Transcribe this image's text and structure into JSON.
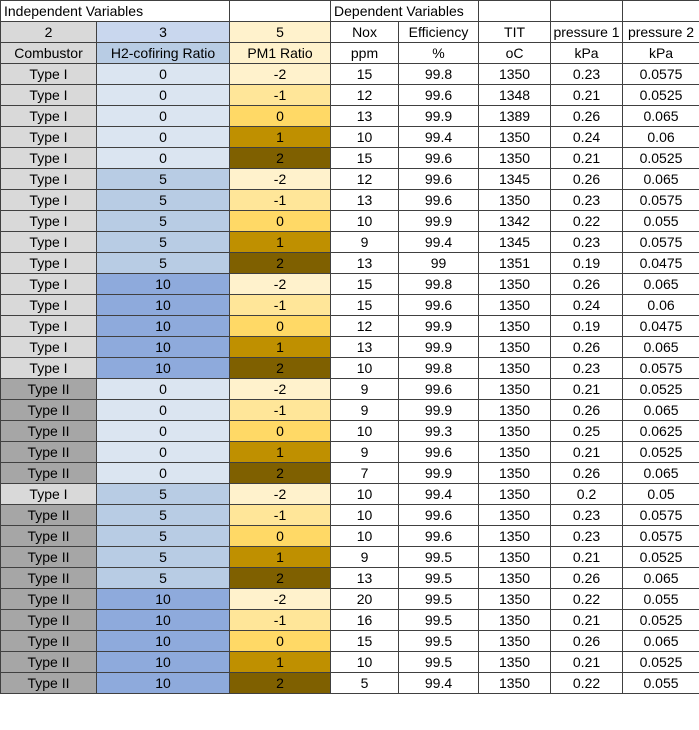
{
  "table": {
    "section_headers": {
      "independent": "Independent Variables",
      "dependent": "Dependent Variables"
    },
    "number_row": [
      "2",
      "3",
      "5",
      "Nox",
      "Efficiency",
      "TIT",
      "pressure 1",
      "pressure 2"
    ],
    "title_row": [
      "Combustor",
      "H2-cofiring Ratio",
      "PM1 Ratio",
      "ppm",
      "%",
      "oC",
      "kPa",
      "kPa"
    ],
    "rows": [
      [
        "Type I",
        "0",
        "-2",
        "15",
        "99.8",
        "1350",
        "0.23",
        "0.0575"
      ],
      [
        "Type I",
        "0",
        "-1",
        "12",
        "99.6",
        "1348",
        "0.21",
        "0.0525"
      ],
      [
        "Type I",
        "0",
        "0",
        "13",
        "99.9",
        "1389",
        "0.26",
        "0.065"
      ],
      [
        "Type I",
        "0",
        "1",
        "10",
        "99.4",
        "1350",
        "0.24",
        "0.06"
      ],
      [
        "Type I",
        "0",
        "2",
        "15",
        "99.6",
        "1350",
        "0.21",
        "0.0525"
      ],
      [
        "Type I",
        "5",
        "-2",
        "12",
        "99.6",
        "1345",
        "0.26",
        "0.065"
      ],
      [
        "Type I",
        "5",
        "-1",
        "13",
        "99.6",
        "1350",
        "0.23",
        "0.0575"
      ],
      [
        "Type I",
        "5",
        "0",
        "10",
        "99.9",
        "1342",
        "0.22",
        "0.055"
      ],
      [
        "Type I",
        "5",
        "1",
        "9",
        "99.4",
        "1345",
        "0.23",
        "0.0575"
      ],
      [
        "Type I",
        "5",
        "2",
        "13",
        "99",
        "1351",
        "0.19",
        "0.0475"
      ],
      [
        "Type I",
        "10",
        "-2",
        "15",
        "99.8",
        "1350",
        "0.26",
        "0.065"
      ],
      [
        "Type I",
        "10",
        "-1",
        "15",
        "99.6",
        "1350",
        "0.24",
        "0.06"
      ],
      [
        "Type I",
        "10",
        "0",
        "12",
        "99.9",
        "1350",
        "0.19",
        "0.0475"
      ],
      [
        "Type I",
        "10",
        "1",
        "13",
        "99.9",
        "1350",
        "0.26",
        "0.065"
      ],
      [
        "Type I",
        "10",
        "2",
        "10",
        "99.8",
        "1350",
        "0.23",
        "0.0575"
      ],
      [
        "Type II",
        "0",
        "-2",
        "9",
        "99.6",
        "1350",
        "0.21",
        "0.0525"
      ],
      [
        "Type II",
        "0",
        "-1",
        "9",
        "99.9",
        "1350",
        "0.26",
        "0.065"
      ],
      [
        "Type II",
        "0",
        "0",
        "10",
        "99.3",
        "1350",
        "0.25",
        "0.0625"
      ],
      [
        "Type II",
        "0",
        "1",
        "9",
        "99.6",
        "1350",
        "0.21",
        "0.0525"
      ],
      [
        "Type II",
        "0",
        "2",
        "7",
        "99.9",
        "1350",
        "0.26",
        "0.065"
      ],
      [
        "Type I",
        "5",
        "-2",
        "10",
        "99.4",
        "1350",
        "0.2",
        "0.05"
      ],
      [
        "Type II",
        "5",
        "-1",
        "10",
        "99.6",
        "1350",
        "0.23",
        "0.0575"
      ],
      [
        "Type II",
        "5",
        "0",
        "10",
        "99.6",
        "1350",
        "0.23",
        "0.0575"
      ],
      [
        "Type II",
        "5",
        "1",
        "9",
        "99.5",
        "1350",
        "0.21",
        "0.0525"
      ],
      [
        "Type II",
        "5",
        "2",
        "13",
        "99.5",
        "1350",
        "0.26",
        "0.065"
      ],
      [
        "Type II",
        "10",
        "-2",
        "20",
        "99.5",
        "1350",
        "0.22",
        "0.055"
      ],
      [
        "Type II",
        "10",
        "-1",
        "16",
        "99.5",
        "1350",
        "0.21",
        "0.0525"
      ],
      [
        "Type II",
        "10",
        "0",
        "15",
        "99.5",
        "1350",
        "0.26",
        "0.065"
      ],
      [
        "Type II",
        "10",
        "1",
        "10",
        "99.5",
        "1350",
        "0.21",
        "0.0525"
      ],
      [
        "Type II",
        "10",
        "2",
        "5",
        "99.4",
        "1350",
        "0.22",
        "0.055"
      ]
    ]
  },
  "colors": {
    "grid": "#404040",
    "white": "#ffffff",
    "number_bg": [
      "#d9d9d9",
      "#c9d7ee",
      "#fff2cc",
      "#ffffff",
      "#ffffff",
      "#ffffff",
      "#ffffff",
      "#ffffff"
    ],
    "title_bg": [
      "#d9d9d9",
      "#b8cce4",
      "#fff2cc",
      "#ffffff",
      "#ffffff",
      "#ffffff",
      "#ffffff",
      "#ffffff"
    ],
    "combustor": {
      "Type I": "#d9d9d9",
      "Type II": "#a6a6a6"
    },
    "h2": {
      "0": "#dbe5f1",
      "5": "#b8cce4",
      "10": "#8eaadc"
    },
    "pm1": {
      "-2": "#fff2cc",
      "-1": "#ffe699",
      "0": "#ffd966",
      "1": "#bf9000",
      "2": "#7f6000"
    }
  }
}
